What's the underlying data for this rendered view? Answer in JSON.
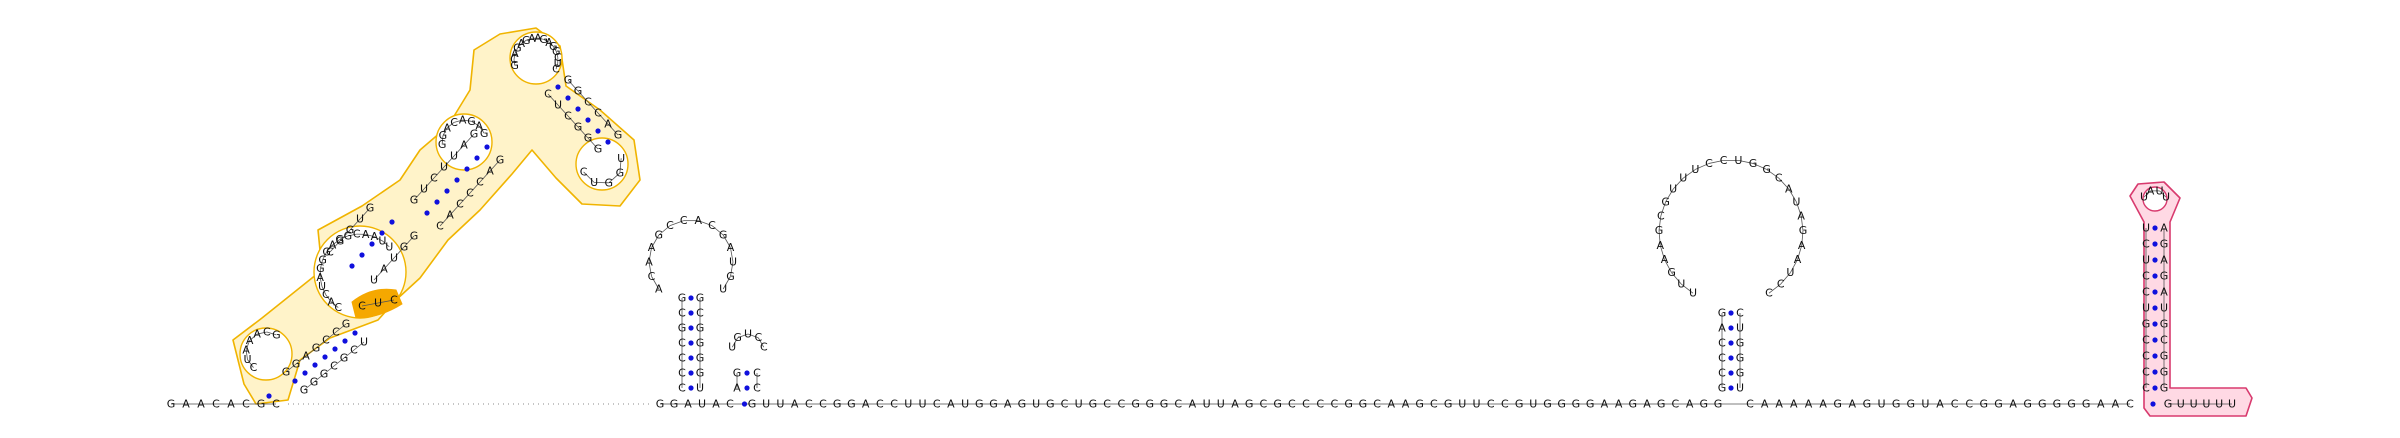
{
  "diagram": {
    "kind": "rna-secondary-structure",
    "colors": {
      "backbone": "#555555",
      "base_pair_dot": "#1010dd",
      "highlight_gold_fill": "#fff3c9",
      "highlight_gold_stroke": "#f0b400",
      "highlight_solid": "#f5a800",
      "highlight_pink_fill": "#ffd9e4",
      "highlight_pink_stroke": "#d83a6e"
    },
    "five_prime_tail": "GAACACG",
    "linker_3": "GGAUAC",
    "long_spacer": "GUUACCGGACCUUCAUGGAGUGCUGCCGGGCAUUAGCGCCCCGGCAAGCGUUCCGUGGGGAAGAGCAGG",
    "spacer_after_hairpin_3": "CAAAAAGAGUGGUACCGGAGGGGGAAC",
    "three_prime_tail": "GUUUUU",
    "bulge_highlight": "CUC",
    "helix_large_left": {
      "stem_strand_a": "GGAGCCG",
      "stem_strand_b": "GGGCGCU",
      "interior_loop_1": "CUAAACG",
      "stem2_strand_a": "CGGUG",
      "stem2_strand_b": "UAUGG",
      "interior_loop_2": "CACUAGGGAGGCAAUU",
      "stem3_strand_a": "GUCUUAG",
      "stem3_strand_b": "CACCCAG",
      "multiloop": "GCAGAGAAGAGGCUC",
      "branch_left_loop": "GGACAGAG",
      "branch_right_stem_a": "CUCGGG",
      "branch_right_stem_b": "GGCCAG",
      "branch_right_loop": "UGGUC"
    },
    "hairpin_1": {
      "stem_5": "CCCCGCG",
      "stem_3": "GCGGGGU",
      "loop": "ACAAGCCACGAUGU"
    },
    "hairpin_2": {
      "stem_5": "AG",
      "stem_3": "CC",
      "loop": "UGUCC"
    },
    "hairpin_3": {
      "stem_5": "GCCCAG",
      "stem_3": "CUGGGU",
      "loop": "UUGAAGCGUUUCCUGGCAUAGAAUCC"
    },
    "hairpin_4": {
      "stem_5": "CCCCGUCCUCU",
      "stem_3": "AGAGAUGCGGG",
      "loop": "UAUU"
    }
  }
}
